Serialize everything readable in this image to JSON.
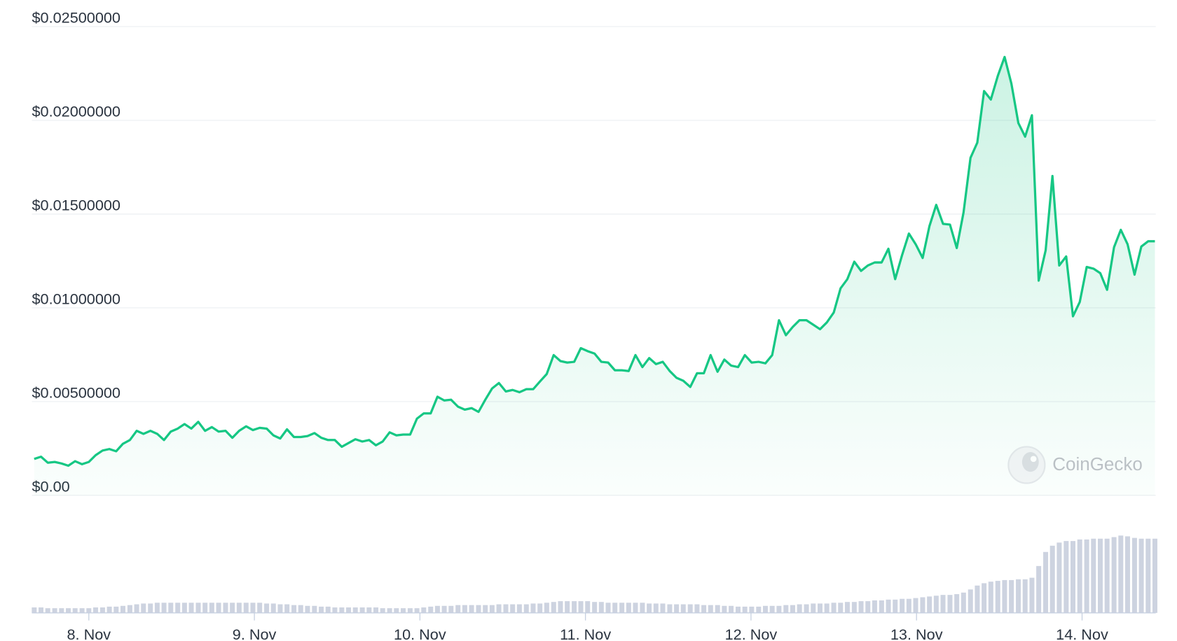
{
  "chart_data": {
    "type": "line",
    "color": "#16c784",
    "volume_color": "#cdd3e0",
    "grid": true,
    "watermark": "CoinGecko",
    "xlim": [
      7.656,
      14.445
    ],
    "xticks": [
      {
        "value": 8,
        "label": "8. Nov"
      },
      {
        "value": 9,
        "label": "9. Nov"
      },
      {
        "value": 10,
        "label": "10. Nov"
      },
      {
        "value": 11,
        "label": "11. Nov"
      },
      {
        "value": 12,
        "label": "12. Nov"
      },
      {
        "value": 13,
        "label": "13. Nov"
      },
      {
        "value": 14,
        "label": "14. Nov"
      }
    ],
    "ylim": [
      0,
      0.025
    ],
    "yticks": [
      {
        "value": 0,
        "label": "$0.00"
      },
      {
        "value": 0.005,
        "label": "$0.00500000"
      },
      {
        "value": 0.01,
        "label": "$0.01000000"
      },
      {
        "value": 0.015,
        "label": "$0.01500000"
      },
      {
        "value": 0.02,
        "label": "$0.02000000"
      },
      {
        "value": 0.025,
        "label": "$0.02500000"
      }
    ],
    "y2lim": [
      0,
      100
    ],
    "x": [
      7.67,
      7.711,
      7.752,
      7.794,
      7.835,
      7.876,
      7.917,
      7.959,
      8.0,
      8.041,
      8.083,
      8.124,
      8.165,
      8.206,
      8.248,
      8.289,
      8.33,
      8.372,
      8.413,
      8.454,
      8.495,
      8.537,
      8.578,
      8.619,
      8.661,
      8.702,
      8.743,
      8.784,
      8.826,
      8.867,
      8.908,
      8.95,
      8.991,
      9.032,
      9.074,
      9.115,
      9.156,
      9.197,
      9.239,
      9.28,
      9.321,
      9.363,
      9.404,
      9.445,
      9.486,
      9.528,
      9.569,
      9.61,
      9.652,
      9.693,
      9.734,
      9.775,
      9.817,
      9.858,
      9.899,
      9.941,
      9.982,
      10.023,
      10.065,
      10.106,
      10.147,
      10.188,
      10.23,
      10.271,
      10.312,
      10.354,
      10.395,
      10.436,
      10.477,
      10.519,
      10.56,
      10.601,
      10.643,
      10.684,
      10.725,
      10.766,
      10.808,
      10.849,
      10.89,
      10.932,
      10.972,
      11.013,
      11.055,
      11.096,
      11.137,
      11.178,
      11.22,
      11.261,
      11.302,
      11.344,
      11.385,
      11.426,
      11.467,
      11.509,
      11.55,
      11.591,
      11.633,
      11.674,
      11.715,
      11.756,
      11.798,
      11.839,
      11.88,
      11.922,
      11.963,
      12.004,
      12.046,
      12.087,
      12.128,
      12.169,
      12.211,
      12.252,
      12.293,
      12.335,
      12.376,
      12.417,
      12.458,
      12.5,
      12.541,
      12.582,
      12.624,
      12.665,
      12.706,
      12.747,
      12.789,
      12.83,
      12.871,
      12.913,
      12.954,
      12.995,
      13.037,
      13.078,
      13.119,
      13.16,
      13.202,
      13.243,
      13.284,
      13.326,
      13.367,
      13.408,
      13.449,
      13.491,
      13.532,
      13.573,
      13.615,
      13.656,
      13.697,
      13.738,
      13.78,
      13.821,
      13.862,
      13.904,
      13.945,
      13.986,
      14.028,
      14.069,
      14.11,
      14.151,
      14.193,
      14.234,
      14.275,
      14.317,
      14.358,
      14.399,
      14.44
    ],
    "values": [
      0.00194,
      0.00206,
      0.00174,
      0.00178,
      0.0017,
      0.00158,
      0.00182,
      0.00166,
      0.00178,
      0.00214,
      0.00239,
      0.00247,
      0.00235,
      0.00275,
      0.00295,
      0.00344,
      0.00328,
      0.00344,
      0.00328,
      0.00295,
      0.0034,
      0.00356,
      0.0038,
      0.00356,
      0.00392,
      0.00344,
      0.00364,
      0.0034,
      0.00344,
      0.00307,
      0.00344,
      0.00368,
      0.00348,
      0.0036,
      0.00356,
      0.0032,
      0.00303,
      0.00352,
      0.00311,
      0.00311,
      0.00316,
      0.00332,
      0.00307,
      0.00295,
      0.00295,
      0.00259,
      0.00279,
      0.00299,
      0.00287,
      0.00295,
      0.00267,
      0.00287,
      0.00336,
      0.0032,
      0.00324,
      0.00324,
      0.00409,
      0.00437,
      0.00437,
      0.00526,
      0.00506,
      0.0051,
      0.00473,
      0.00457,
      0.00465,
      0.00445,
      0.0051,
      0.0057,
      0.00599,
      0.00554,
      0.00562,
      0.0055,
      0.00566,
      0.00566,
      0.00607,
      0.00647,
      0.00748,
      0.00716,
      0.00708,
      0.00712,
      0.00785,
      0.00769,
      0.00756,
      0.00712,
      0.00708,
      0.00667,
      0.00667,
      0.00663,
      0.00748,
      0.00684,
      0.00732,
      0.007,
      0.00712,
      0.00663,
      0.00627,
      0.00611,
      0.00578,
      0.00651,
      0.00651,
      0.00748,
      0.00659,
      0.00724,
      0.00692,
      0.00684,
      0.00748,
      0.00708,
      0.00712,
      0.00704,
      0.00748,
      0.00934,
      0.00854,
      0.00898,
      0.00934,
      0.00934,
      0.0091,
      0.00886,
      0.00922,
      0.00975,
      0.01104,
      0.01153,
      0.01246,
      0.01197,
      0.01226,
      0.01242,
      0.01242,
      0.01315,
      0.01153,
      0.01282,
      0.01396,
      0.01339,
      0.01266,
      0.01436,
      0.01549,
      0.01448,
      0.01444,
      0.01319,
      0.01509,
      0.018,
      0.01881,
      0.02156,
      0.02111,
      0.02237,
      0.02338,
      0.02196,
      0.01986,
      0.01913,
      0.02027,
      0.01145,
      0.01307,
      0.01703,
      0.01226,
      0.01274,
      0.00955,
      0.01031,
      0.01218,
      0.01209,
      0.01185,
      0.01096,
      0.01323,
      0.01416,
      0.01339,
      0.01177,
      0.01327,
      0.01355,
      0.01355
    ],
    "volume": [
      7,
      7,
      6,
      6,
      6,
      6,
      6,
      6,
      6,
      7,
      7,
      8,
      8,
      9,
      10,
      11,
      12,
      12,
      13,
      13,
      13,
      13,
      13,
      13,
      13,
      13,
      13,
      13,
      13,
      13,
      13,
      13,
      13,
      13,
      12,
      12,
      11,
      11,
      10,
      10,
      9,
      9,
      8,
      8,
      7,
      7,
      7,
      7,
      7,
      7,
      7,
      6,
      6,
      6,
      6,
      6,
      6,
      7,
      8,
      9,
      9,
      9,
      10,
      10,
      10,
      10,
      10,
      10,
      11,
      11,
      11,
      11,
      11,
      12,
      12,
      13,
      14,
      15,
      15,
      15,
      15,
      15,
      14,
      14,
      13,
      13,
      13,
      13,
      13,
      13,
      12,
      12,
      12,
      11,
      11,
      11,
      11,
      11,
      10,
      10,
      10,
      9,
      9,
      8,
      8,
      8,
      8,
      9,
      9,
      9,
      10,
      10,
      11,
      11,
      12,
      12,
      12,
      13,
      13,
      14,
      14,
      15,
      15,
      16,
      16,
      17,
      17,
      18,
      18,
      19,
      20,
      21,
      22,
      23,
      23,
      24,
      26,
      30,
      35,
      38,
      40,
      41,
      42,
      42,
      43,
      43,
      45,
      60,
      78,
      86,
      90,
      92,
      92,
      94,
      94,
      95,
      95,
      95,
      97,
      99,
      98,
      96,
      95,
      95,
      95
    ]
  }
}
